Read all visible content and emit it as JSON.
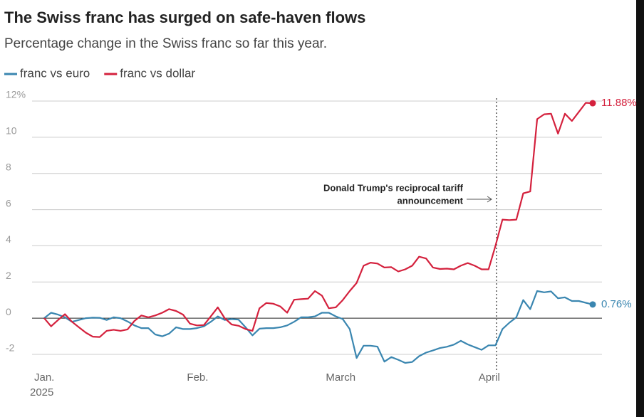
{
  "chart_data": {
    "type": "line",
    "title": "The Swiss franc has surged on safe-haven flows",
    "subtitle": "Percentage change in the Swiss franc so far this year.",
    "categories": [
      "Jan.",
      null,
      null,
      null,
      null,
      null,
      null,
      null,
      null,
      null,
      null,
      null,
      null,
      null,
      null,
      null,
      null,
      null,
      null,
      null,
      null,
      null,
      "Feb.",
      null,
      null,
      null,
      null,
      null,
      null,
      null,
      null,
      null,
      null,
      null,
      null,
      null,
      null,
      null,
      null,
      null,
      null,
      null,
      "March",
      null,
      null,
      null,
      null,
      null,
      null,
      null,
      null,
      null,
      null,
      null,
      null,
      null,
      null,
      null,
      null,
      null,
      null,
      null,
      null,
      null,
      "April",
      null,
      null,
      null,
      null,
      null,
      null,
      null,
      null,
      null,
      null,
      null,
      null,
      null,
      null,
      null
    ],
    "year_label": "2025",
    "series": [
      {
        "name": "franc vs euro",
        "color": "#3a86b0",
        "end_label": "0.76%",
        "values": [
          0,
          0.3,
          0.2,
          0.05,
          -0.2,
          -0.1,
          0.0,
          0.03,
          0.02,
          -0.1,
          0.05,
          0.0,
          -0.18,
          -0.4,
          -0.55,
          -0.55,
          -0.9,
          -1.0,
          -0.85,
          -0.5,
          -0.6,
          -0.6,
          -0.55,
          -0.45,
          -0.2,
          0.1,
          -0.1,
          -0.05,
          -0.08,
          -0.5,
          -0.95,
          -0.58,
          -0.55,
          -0.55,
          -0.5,
          -0.4,
          -0.2,
          0.05,
          0.05,
          0.1,
          0.3,
          0.3,
          0.1,
          -0.05,
          -0.6,
          -2.2,
          -1.52,
          -1.52,
          -1.57,
          -2.4,
          -2.15,
          -2.3,
          -2.47,
          -2.42,
          -2.1,
          -1.9,
          -1.78,
          -1.65,
          -1.58,
          -1.46,
          -1.25,
          -1.45,
          -1.6,
          -1.75,
          -1.5,
          -1.5,
          -0.6,
          -0.25,
          0.05,
          1.0,
          0.5,
          1.5,
          1.43,
          1.48,
          1.1,
          1.15,
          0.95,
          0.95,
          0.85,
          0.76
        ]
      },
      {
        "name": "franc vs dollar",
        "color": "#d4213d",
        "end_label": "11.88%",
        "values": [
          0,
          -0.45,
          -0.1,
          0.22,
          -0.2,
          -0.5,
          -0.8,
          -1.02,
          -1.04,
          -0.7,
          -0.64,
          -0.7,
          -0.62,
          -0.15,
          0.15,
          0.05,
          0.15,
          0.3,
          0.5,
          0.4,
          0.2,
          -0.3,
          -0.4,
          -0.38,
          0.1,
          0.6,
          0.0,
          -0.35,
          -0.42,
          -0.6,
          -0.7,
          0.55,
          0.84,
          0.8,
          0.65,
          0.3,
          1.02,
          1.05,
          1.08,
          1.5,
          1.25,
          0.55,
          0.6,
          1.0,
          1.5,
          1.95,
          2.9,
          3.07,
          3.02,
          2.8,
          2.82,
          2.58,
          2.7,
          2.9,
          3.4,
          3.3,
          2.8,
          2.72,
          2.74,
          2.7,
          2.9,
          3.05,
          2.9,
          2.7,
          2.7,
          4.0,
          5.45,
          5.42,
          5.45,
          6.9,
          7.0,
          11.0,
          11.27,
          11.3,
          10.2,
          11.3,
          10.9,
          11.4,
          11.9,
          11.88
        ]
      }
    ],
    "annotation": [
      "Donald Trump's reciprocal tariff",
      "announcement"
    ],
    "ylim": [
      -2,
      12
    ],
    "yticks": [
      -2,
      0,
      2,
      4,
      6,
      8,
      10,
      {
        "value": 12,
        "label": "12%"
      }
    ],
    "grid": true
  }
}
